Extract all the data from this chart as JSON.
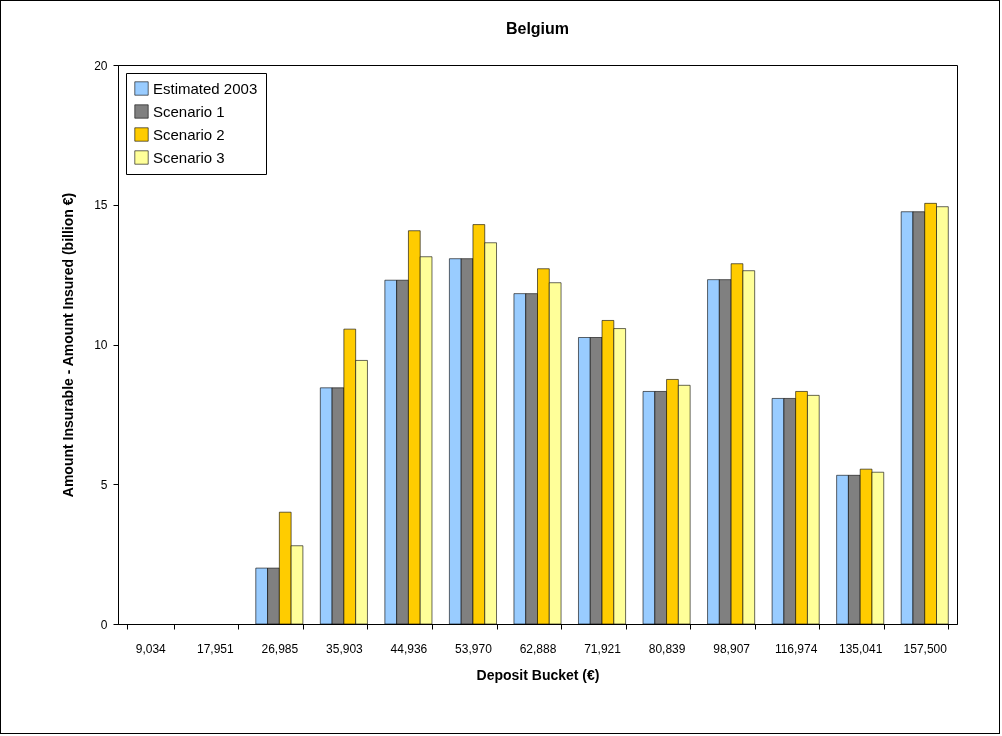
{
  "chart_data": {
    "type": "bar",
    "title": "Belgium",
    "xlabel": "Deposit Bucket (€)",
    "ylabel": "Amount Insurable - Amount Insured  (billion €)",
    "categories": [
      "9,034",
      "17,951",
      "26,985",
      "35,903",
      "44,936",
      "53,970",
      "62,888",
      "71,921",
      "80,839",
      "98,907",
      "116,974",
      "135,041",
      "157,500"
    ],
    "series": [
      {
        "name": "Estimated 2003",
        "color": "#99ccff",
        "values": [
          0,
          0,
          2.0,
          8.45,
          12.3,
          13.07,
          11.82,
          10.25,
          8.32,
          12.32,
          8.07,
          5.32,
          14.75
        ]
      },
      {
        "name": "Scenario 1",
        "color": "#808080",
        "values": [
          0,
          0,
          2.0,
          8.45,
          12.3,
          13.07,
          11.82,
          10.25,
          8.32,
          12.32,
          8.07,
          5.32,
          14.75
        ]
      },
      {
        "name": "Scenario 2",
        "color": "#ffcc00",
        "values": [
          0,
          0,
          4.0,
          10.55,
          14.07,
          14.29,
          12.71,
          10.86,
          8.75,
          12.89,
          8.32,
          5.54,
          15.05
        ]
      },
      {
        "name": "Scenario 3",
        "color": "#ffff99",
        "values": [
          0,
          0,
          2.8,
          9.43,
          13.14,
          13.64,
          12.21,
          10.57,
          8.54,
          12.64,
          8.18,
          5.43,
          14.93
        ]
      }
    ],
    "ylim": [
      0,
      20
    ],
    "yticks": [
      0,
      5,
      10,
      15,
      20
    ],
    "grid": false,
    "legend": "top left"
  }
}
